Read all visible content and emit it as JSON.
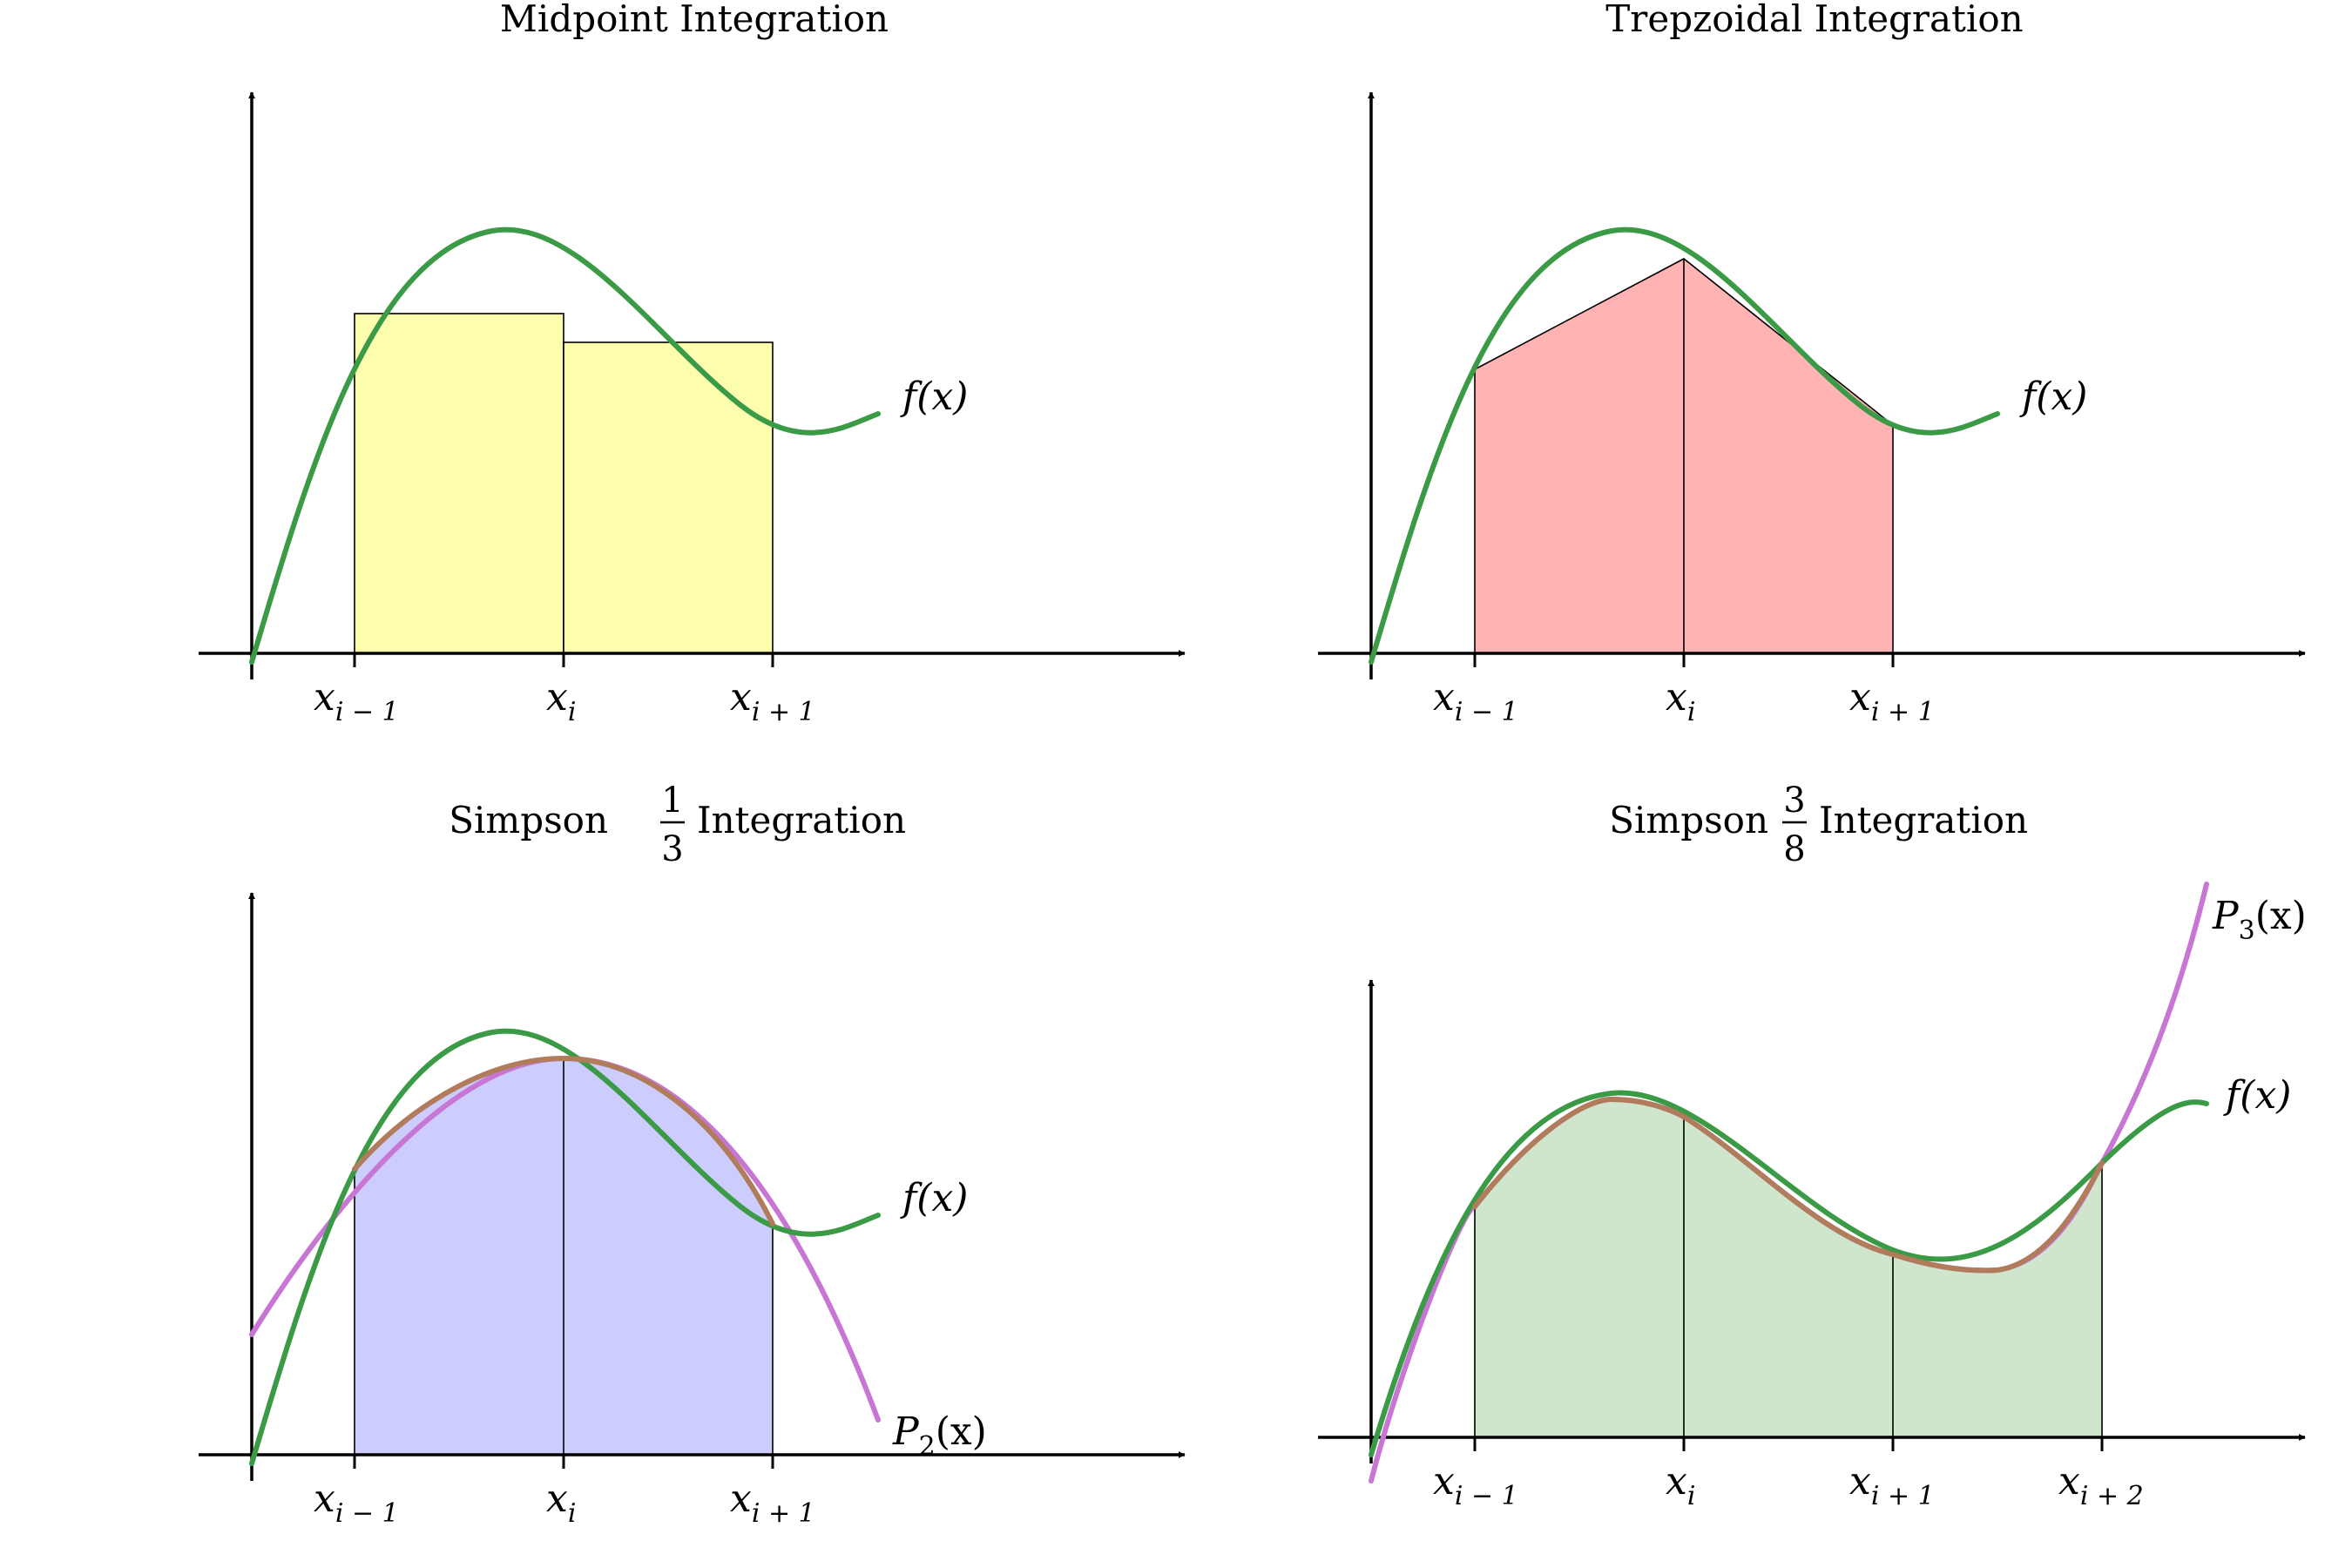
{
  "panels": {
    "midpoint": {
      "title": "Midpoint Integration",
      "curve_label": "f(x)",
      "ticks": [
        {
          "var": "x",
          "sub": "i − 1"
        },
        {
          "var": "x",
          "sub": "i"
        },
        {
          "var": "x",
          "sub": "i + 1"
        }
      ],
      "colors": {
        "fill": "#fdfdae",
        "curve": "#3a9a45"
      }
    },
    "trapezoidal": {
      "title": "Trepzoidal Integration",
      "curve_label": "f(x)",
      "ticks": [
        {
          "var": "x",
          "sub": "i − 1"
        },
        {
          "var": "x",
          "sub": "i"
        },
        {
          "var": "x",
          "sub": "i + 1"
        }
      ],
      "colors": {
        "fill": "#ffb3b3",
        "curve": "#3a9a45"
      }
    },
    "simpson13": {
      "title_left": "Simpson",
      "frac_num": "1",
      "frac_den": "3",
      "title_right": "Integration",
      "curve_label": "f(x)",
      "poly_label": "P",
      "poly_sub": "2",
      "poly_arg": "(x)",
      "ticks": [
        {
          "var": "x",
          "sub": "i − 1"
        },
        {
          "var": "x",
          "sub": "i"
        },
        {
          "var": "x",
          "sub": "i + 1"
        }
      ],
      "colors": {
        "fill": "#cccdfd",
        "curve": "#3a9a45",
        "poly": "#c876d4"
      }
    },
    "simpson38": {
      "title_left": "Simpson",
      "frac_num": "3",
      "frac_den": "8",
      "title_right": "Integration",
      "curve_label": "f(x)",
      "poly_label": "P",
      "poly_sub": "3",
      "poly_arg": "(x)",
      "ticks": [
        {
          "var": "x",
          "sub": "i − 1"
        },
        {
          "var": "x",
          "sub": "i"
        },
        {
          "var": "x",
          "sub": "i + 1"
        },
        {
          "var": "x",
          "sub": "i + 2"
        }
      ],
      "colors": {
        "fill": "#cfe5cc",
        "curve": "#3a9a45",
        "poly": "#c876d4"
      }
    }
  }
}
